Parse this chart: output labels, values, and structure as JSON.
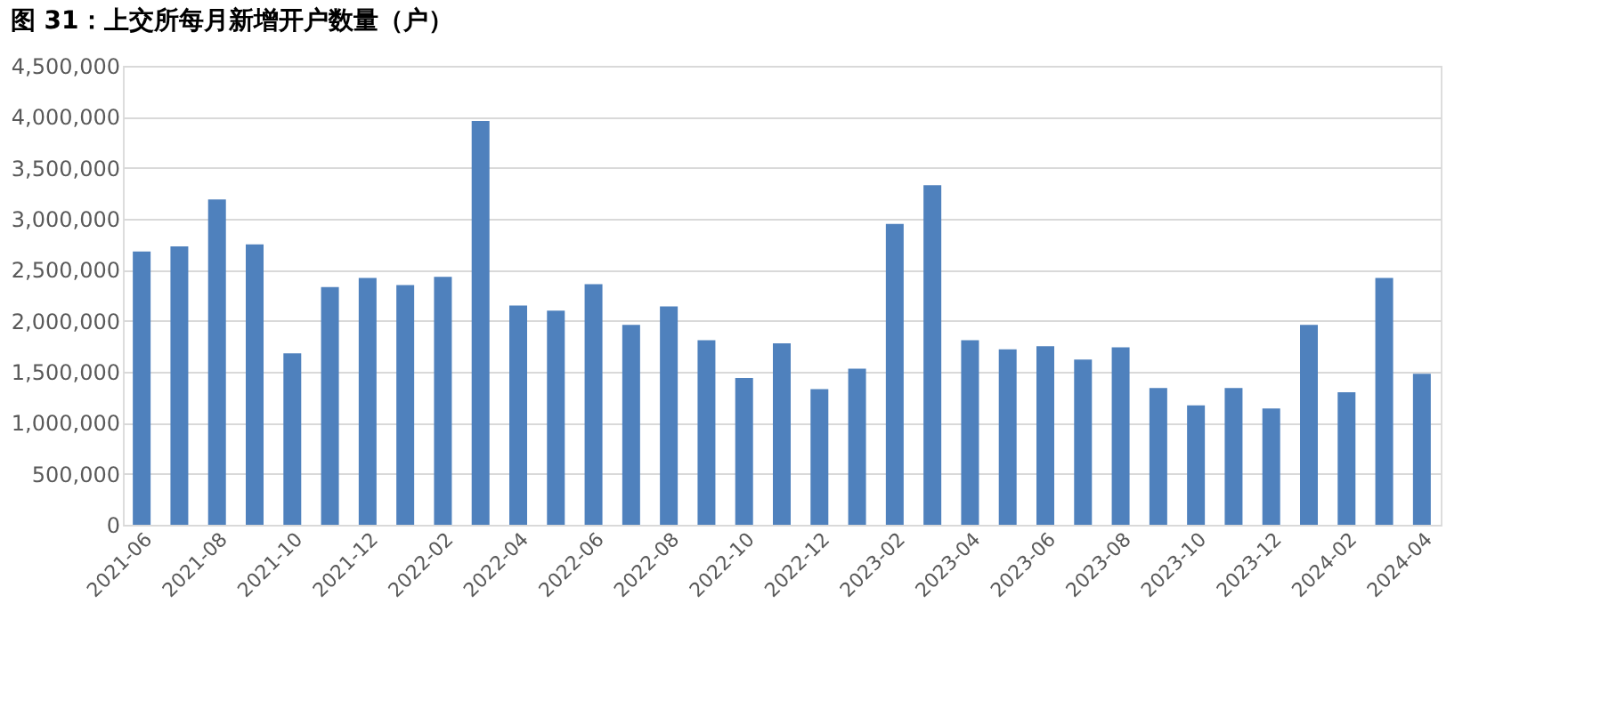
{
  "chart_data": {
    "type": "bar",
    "title": "图 31：上交所每月新增开户数量（户）",
    "categories": [
      "2021-06",
      null,
      "2021-08",
      null,
      "2021-10",
      null,
      "2021-12",
      null,
      "2022-02",
      null,
      "2022-04",
      null,
      "2022-06",
      null,
      "2022-08",
      null,
      "2022-10",
      null,
      "2022-12",
      null,
      "2023-02",
      null,
      "2023-04",
      null,
      "2023-06",
      null,
      "2023-08",
      null,
      "2023-10",
      null,
      "2023-12",
      null,
      "2024-02",
      null,
      "2024-04"
    ],
    "values": [
      2680000,
      2730000,
      3190000,
      2750000,
      1680000,
      2330000,
      2420000,
      2350000,
      2430000,
      3960000,
      2150000,
      2100000,
      2360000,
      1960000,
      2140000,
      1810000,
      1440000,
      1780000,
      1330000,
      1530000,
      2950000,
      3330000,
      1810000,
      1720000,
      1750000,
      1620000,
      1740000,
      1340000,
      1170000,
      1340000,
      1140000,
      1960000,
      1300000,
      2420000,
      1480000
    ],
    "color": "#4f81bd",
    "ylim": [
      0,
      4500000
    ],
    "yticks": [
      {
        "value": 0,
        "label": "0"
      },
      {
        "value": 500000,
        "label": "500,000"
      },
      {
        "value": 1000000,
        "label": "1,000,000"
      },
      {
        "value": 1500000,
        "label": "1,500,000"
      },
      {
        "value": 2000000,
        "label": "2,000,000"
      },
      {
        "value": 2500000,
        "label": "2,500,000"
      },
      {
        "value": 3000000,
        "label": "3,000,000"
      },
      {
        "value": 3500000,
        "label": "3,500,000"
      },
      {
        "value": 4000000,
        "label": "4,000,000"
      },
      {
        "value": 4500000,
        "label": "4,500,000"
      }
    ],
    "grid": "y"
  }
}
